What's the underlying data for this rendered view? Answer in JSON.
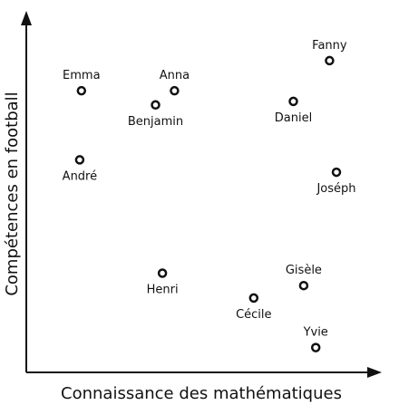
{
  "chart_data": {
    "type": "scatter",
    "title": "",
    "xlabel": "Connaissance des mathématiques",
    "ylabel": "Compétences en football",
    "xlim": [
      0,
      100
    ],
    "ylim": [
      0,
      100
    ],
    "grid": false,
    "legend": "none",
    "marker": "open-circle",
    "color": "#111111",
    "points": [
      {
        "label": "Fanny",
        "x": 88,
        "y": 88,
        "label_pos": "above"
      },
      {
        "label": "Emma",
        "x": 16,
        "y": 79.5,
        "label_pos": "above"
      },
      {
        "label": "Anna",
        "x": 43,
        "y": 79.5,
        "label_pos": "above"
      },
      {
        "label": "Benjamin",
        "x": 37.5,
        "y": 75.5,
        "label_pos": "below"
      },
      {
        "label": "Daniel",
        "x": 77.5,
        "y": 76.5,
        "label_pos": "below"
      },
      {
        "label": "André",
        "x": 15.5,
        "y": 60,
        "label_pos": "below"
      },
      {
        "label": "Joséph",
        "x": 90,
        "y": 56.5,
        "label_pos": "below"
      },
      {
        "label": "Henri",
        "x": 39.5,
        "y": 28,
        "label_pos": "below"
      },
      {
        "label": "Gisèle",
        "x": 80.5,
        "y": 24.5,
        "label_pos": "above"
      },
      {
        "label": "Cécile",
        "x": 66,
        "y": 21,
        "label_pos": "below"
      },
      {
        "label": "Yvie",
        "x": 84,
        "y": 7,
        "label_pos": "above"
      }
    ]
  }
}
